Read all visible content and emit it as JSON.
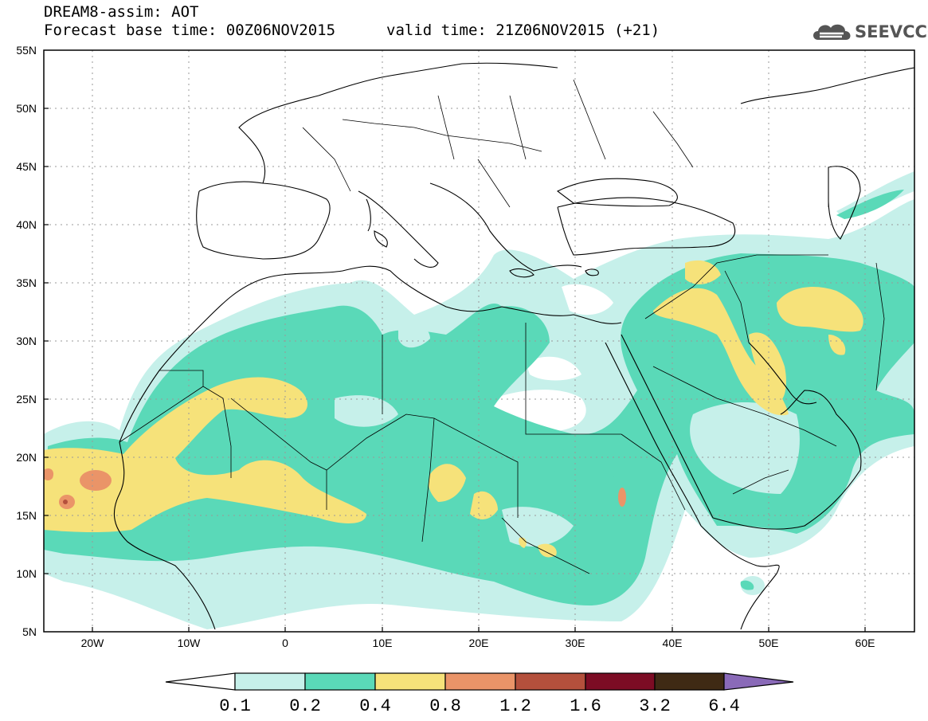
{
  "header": {
    "line1": "DREAM8-assim: AOT",
    "line2": "Forecast base time: 00Z06NOV2015",
    "valid": "valid time: 21Z06NOV2015 (+21)",
    "logo": "SEEVCCC"
  },
  "axes": {
    "lat_labels": [
      "55N",
      "50N",
      "45N",
      "40N",
      "35N",
      "30N",
      "25N",
      "20N",
      "15N",
      "10N",
      "5N"
    ],
    "lon_labels": [
      "20W",
      "10W",
      "0",
      "10E",
      "20E",
      "30E",
      "40E",
      "50E",
      "60E"
    ],
    "lon_range": [
      -25,
      65
    ],
    "lat_range": [
      5,
      55
    ]
  },
  "legend": {
    "labels": [
      "0.1",
      "0.2",
      "0.4",
      "0.8",
      "1.2",
      "1.6",
      "3.2",
      "6.4"
    ],
    "colors": [
      "#ffffff",
      "#c6f0ea",
      "#5ad9b8",
      "#f6e27a",
      "#ea9468",
      "#b4503c",
      "#7c0c24",
      "#3f2a14",
      "#8a6ab8"
    ]
  },
  "fields": {
    "aot_colors": {
      "low": "#c6f0ea",
      "mid": "#5ad9b8",
      "high": "#f6e27a",
      "vhigh": "#ea9468",
      "peak": "#b4503c"
    }
  }
}
